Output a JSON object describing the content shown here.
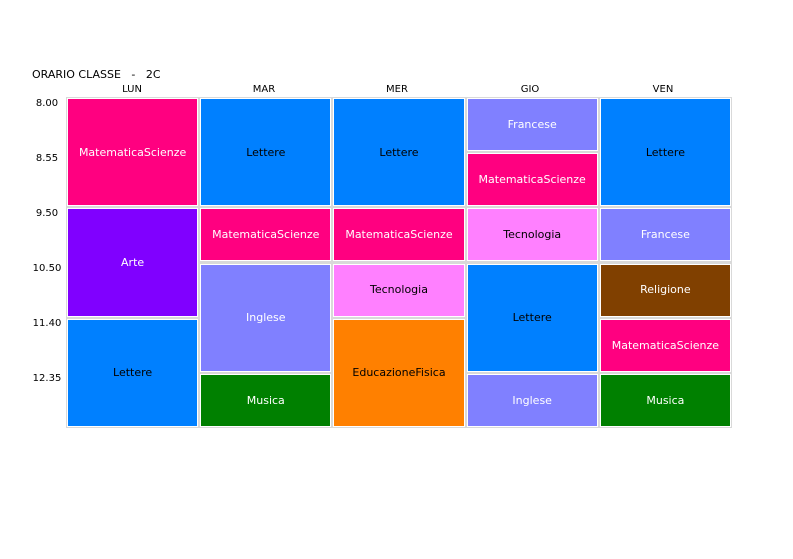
{
  "title": "ORARIO CLASSE   -   2C",
  "days": [
    "LUN",
    "MAR",
    "MER",
    "GIO",
    "VEN"
  ],
  "times": [
    "8.00",
    "8.55",
    "9.50",
    "10.50",
    "11.40",
    "12.35"
  ],
  "colors": {
    "MatematicaScienze": "#ff0080",
    "Lettere": "#0080ff",
    "Arte": "#8000ff",
    "Inglese": "#8080ff",
    "Musica": "#008000",
    "Tecnologia": "#ff80ff",
    "EducazioneFisica": "#ff8000",
    "Francese": "#8080ff",
    "Religione": "#804000"
  },
  "schedule": {
    "LUN": [
      {
        "subject": "MatematicaScienze",
        "slots": 2
      },
      {
        "subject": "Arte",
        "slots": 2
      },
      {
        "subject": "Lettere",
        "slots": 2
      }
    ],
    "MAR": [
      {
        "subject": "Lettere",
        "slots": 2
      },
      {
        "subject": "MatematicaScienze",
        "slots": 1
      },
      {
        "subject": "Inglese",
        "slots": 2
      },
      {
        "subject": "Musica",
        "slots": 1
      }
    ],
    "MER": [
      {
        "subject": "Lettere",
        "slots": 2
      },
      {
        "subject": "MatematicaScienze",
        "slots": 1
      },
      {
        "subject": "Tecnologia",
        "slots": 1
      },
      {
        "subject": "EducazioneFisica",
        "slots": 2
      }
    ],
    "GIO": [
      {
        "subject": "Francese",
        "slots": 1
      },
      {
        "subject": "MatematicaScienze",
        "slots": 1
      },
      {
        "subject": "Tecnologia",
        "slots": 1
      },
      {
        "subject": "Lettere",
        "slots": 2
      },
      {
        "subject": "Inglese",
        "slots": 1
      }
    ],
    "VEN": [
      {
        "subject": "Lettere",
        "slots": 2
      },
      {
        "subject": "Francese",
        "slots": 1
      },
      {
        "subject": "Religione",
        "slots": 1
      },
      {
        "subject": "MatematicaScienze",
        "slots": 1
      },
      {
        "subject": "Musica",
        "slots": 1
      }
    ]
  }
}
